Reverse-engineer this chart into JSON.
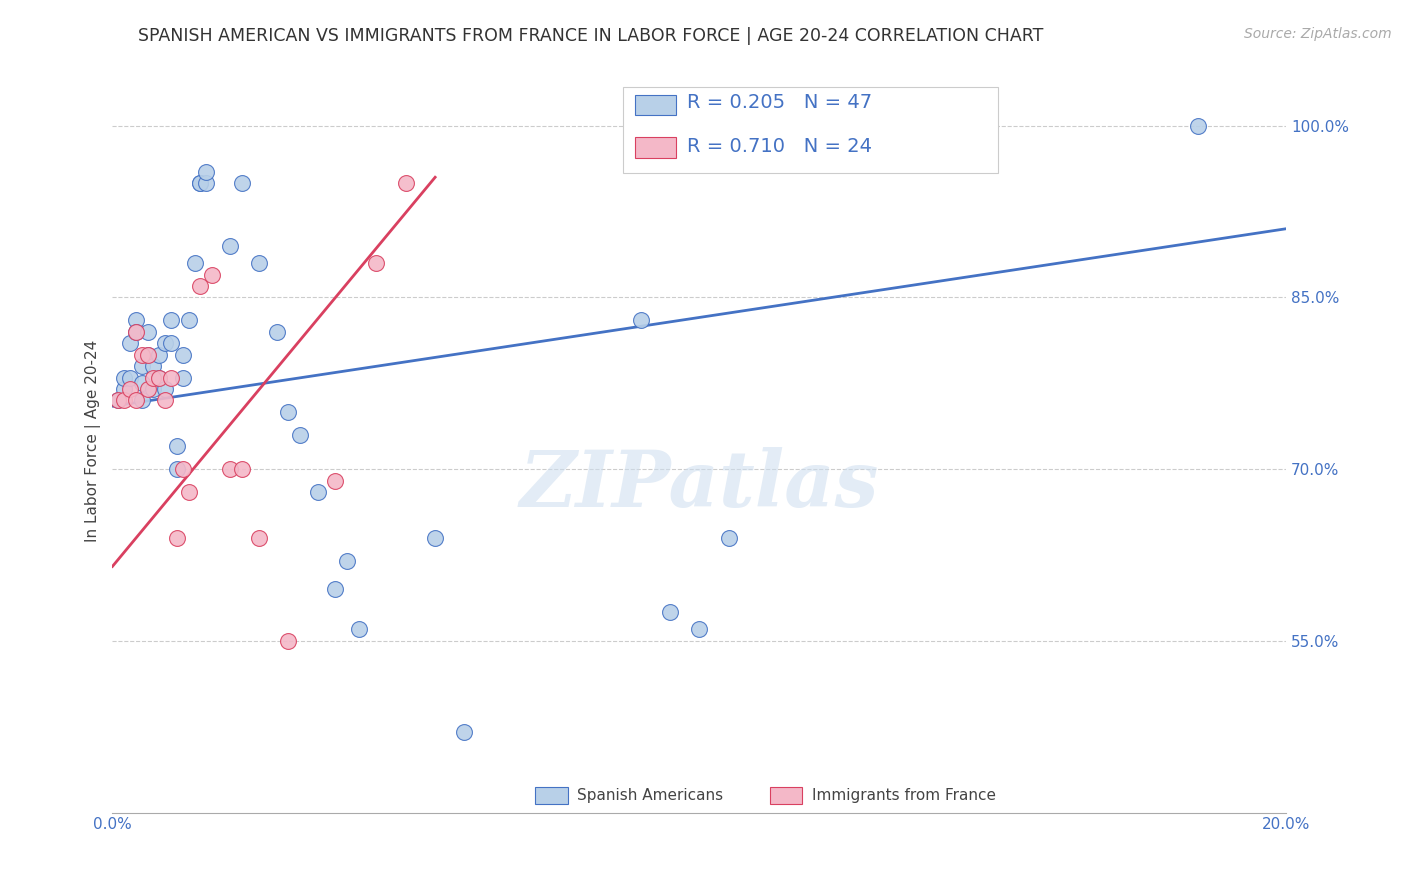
{
  "title": "SPANISH AMERICAN VS IMMIGRANTS FROM FRANCE IN LABOR FORCE | AGE 20-24 CORRELATION CHART",
  "source": "Source: ZipAtlas.com",
  "ylabel": "In Labor Force | Age 20-24",
  "xlim": [
    0.0,
    0.2
  ],
  "ylim": [
    0.4,
    1.05
  ],
  "xticks": [
    0.0,
    0.04,
    0.08,
    0.12,
    0.16,
    0.2
  ],
  "xticklabels": [
    "0.0%",
    "",
    "",
    "",
    "",
    "20.0%"
  ],
  "yticks": [
    0.55,
    0.7,
    0.85,
    1.0
  ],
  "yticklabels": [
    "55.0%",
    "70.0%",
    "85.0%",
    "100.0%"
  ],
  "blue_fill": "#b8d0e8",
  "blue_edge": "#4472c4",
  "pink_fill": "#f4b8c8",
  "pink_edge": "#d94060",
  "blue_line_color": "#4472c4",
  "pink_line_color": "#d94060",
  "legend_label_blue": "R = 0.205   N = 47",
  "legend_label_pink": "R = 0.710   N = 24",
  "legend_label_blue_series": "Spanish Americans",
  "legend_label_pink_series": "Immigrants from France",
  "watermark": "ZIPatlas",
  "blue_scatter_x": [
    0.001,
    0.002,
    0.002,
    0.003,
    0.003,
    0.004,
    0.004,
    0.005,
    0.005,
    0.005,
    0.006,
    0.006,
    0.007,
    0.007,
    0.008,
    0.008,
    0.009,
    0.009,
    0.01,
    0.01,
    0.011,
    0.011,
    0.012,
    0.012,
    0.013,
    0.014,
    0.015,
    0.015,
    0.016,
    0.016,
    0.02,
    0.022,
    0.025,
    0.028,
    0.03,
    0.032,
    0.035,
    0.038,
    0.04,
    0.042,
    0.055,
    0.06,
    0.09,
    0.095,
    0.1,
    0.105,
    0.185
  ],
  "blue_scatter_y": [
    0.76,
    0.77,
    0.78,
    0.81,
    0.78,
    0.83,
    0.82,
    0.76,
    0.775,
    0.79,
    0.8,
    0.82,
    0.77,
    0.79,
    0.78,
    0.8,
    0.81,
    0.77,
    0.83,
    0.81,
    0.72,
    0.7,
    0.8,
    0.78,
    0.83,
    0.88,
    0.95,
    0.95,
    0.95,
    0.96,
    0.895,
    0.95,
    0.88,
    0.82,
    0.75,
    0.73,
    0.68,
    0.595,
    0.62,
    0.56,
    0.64,
    0.47,
    0.83,
    0.575,
    0.56,
    0.64,
    1.0
  ],
  "pink_scatter_x": [
    0.001,
    0.002,
    0.003,
    0.004,
    0.004,
    0.005,
    0.006,
    0.006,
    0.007,
    0.008,
    0.009,
    0.01,
    0.011,
    0.012,
    0.013,
    0.015,
    0.017,
    0.02,
    0.022,
    0.025,
    0.03,
    0.038,
    0.045,
    0.05
  ],
  "pink_scatter_y": [
    0.76,
    0.76,
    0.77,
    0.76,
    0.82,
    0.8,
    0.77,
    0.8,
    0.78,
    0.78,
    0.76,
    0.78,
    0.64,
    0.7,
    0.68,
    0.86,
    0.87,
    0.7,
    0.7,
    0.64,
    0.55,
    0.69,
    0.88,
    0.95
  ],
  "blue_line_x": [
    0.0,
    0.2
  ],
  "blue_line_y": [
    0.755,
    0.91
  ],
  "pink_line_x": [
    0.0,
    0.055
  ],
  "pink_line_y": [
    0.615,
    0.955
  ]
}
